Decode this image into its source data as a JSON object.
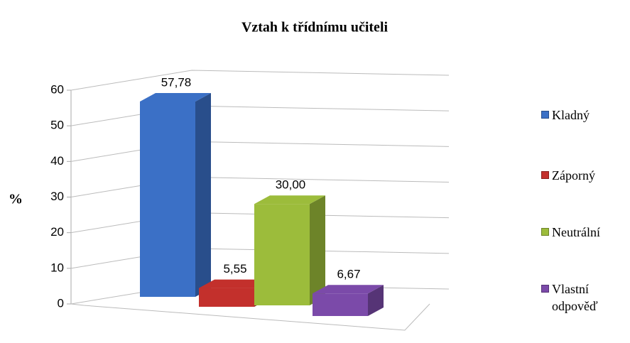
{
  "chart_data": {
    "type": "bar3d",
    "title": "Vztah k třídnímu učiteli",
    "ylabel": "%",
    "series": [
      {
        "name": "Kladný",
        "color": "#3b70c6",
        "values": [
          57.78
        ],
        "value_labels": [
          "57,78"
        ]
      },
      {
        "name": "Záporný",
        "color": "#c3302c",
        "values": [
          5.55
        ],
        "value_labels": [
          "5,55"
        ]
      },
      {
        "name": "Neutrální",
        "color": "#9cbc3b",
        "values": [
          30.0
        ],
        "value_labels": [
          "30,00"
        ]
      },
      {
        "name": "Vlastní odpověď",
        "color": "#7b4aa9",
        "values": [
          6.67
        ],
        "value_labels": [
          "6,67"
        ]
      }
    ],
    "ylim": [
      0,
      60
    ],
    "yticks": [
      0,
      10,
      20,
      30,
      40,
      50,
      60
    ],
    "grid": true,
    "legend": "right"
  }
}
